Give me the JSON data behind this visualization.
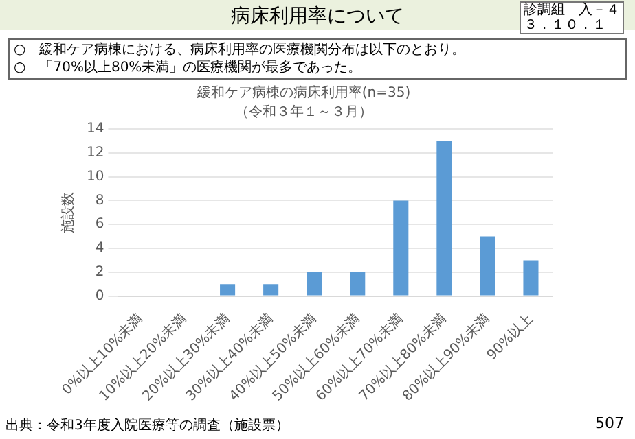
{
  "chart_data": {
    "type": "bar",
    "title": "緩和ケア病棟の病床利用率(n=35)",
    "subtitle": "（令和３年１～３月）",
    "ylabel": "施設数",
    "categories": [
      "0%以上10%未満",
      "10%以上20%未満",
      "20%以上30%未満",
      "30%以上40%未満",
      "40%以上50%未満",
      "50%以上60%未満",
      "60%以上70%未満",
      "70%以上80%未満",
      "80%以上90%未満",
      "90%以上"
    ],
    "values": [
      0,
      0,
      1,
      1,
      2,
      2,
      8,
      13,
      5,
      3
    ],
    "color": "#5b9bd5",
    "ylim": [
      0,
      14
    ],
    "yticks": [
      0,
      2,
      4,
      6,
      8,
      10,
      12,
      14
    ],
    "grid": "y",
    "legend": false,
    "annotations": [
      "病床利用率について",
      "診調組　入－４",
      "３．１０．１",
      "○　緩和ケア病棟における、病床利用率の医療機関分布は以下のとおり。",
      "○　「70%以上80%未満」の医療機関が最多であった。",
      "出典：令和3年度入院医療等の調査（施設票）",
      "507"
    ]
  }
}
